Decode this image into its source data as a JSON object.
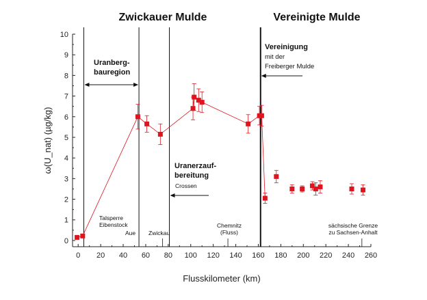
{
  "chart_data": {
    "type": "scatter",
    "title": "",
    "xlabel": "Flusskilometer  (km)",
    "ylabel": "ω(U_nat)  (µg/kg)",
    "xlim": [
      -5,
      260
    ],
    "ylim": [
      -0.3,
      10
    ],
    "xticks": [
      0,
      20,
      40,
      60,
      80,
      100,
      120,
      140,
      160,
      180,
      200,
      220,
      240,
      260
    ],
    "yticks": [
      0,
      1,
      2,
      3,
      4,
      5,
      6,
      7,
      8,
      9,
      10
    ],
    "grid": false,
    "marker_color": "#e0141e",
    "series": [
      {
        "connected": true,
        "points": [
          {
            "x": -1,
            "y": 0.15,
            "err": 0
          },
          {
            "x": 4,
            "y": 0.22,
            "err": 0
          },
          {
            "x": 53,
            "y": 6.0,
            "err": 0.6
          },
          {
            "x": 61,
            "y": 5.65,
            "err": 0.4
          },
          {
            "x": 73,
            "y": 5.15,
            "err": 0.5
          },
          {
            "x": 102,
            "y": 6.4,
            "err": 0.55
          },
          {
            "x": 103,
            "y": 6.95,
            "err": 0.65
          },
          {
            "x": 107,
            "y": 6.8,
            "err": 0.55
          },
          {
            "x": 110,
            "y": 6.7,
            "err": 0.5
          },
          {
            "x": 151,
            "y": 5.65,
            "err": 0.45
          },
          {
            "x": 161,
            "y": 6.05,
            "err": 0.45
          },
          {
            "x": 163,
            "y": 6.05,
            "err": 0.5
          },
          {
            "x": 166,
            "y": 2.05,
            "err": 0.25
          }
        ]
      },
      {
        "connected": false,
        "points": [
          {
            "x": 176,
            "y": 3.1,
            "err": 0.3
          },
          {
            "x": 190,
            "y": 2.5,
            "err": 0.2
          },
          {
            "x": 199,
            "y": 2.5,
            "err": 0.15
          },
          {
            "x": 208,
            "y": 2.65,
            "err": 0.2
          },
          {
            "x": 211,
            "y": 2.5,
            "err": 0.3
          },
          {
            "x": 215,
            "y": 2.6,
            "err": 0.3
          },
          {
            "x": 243,
            "y": 2.5,
            "err": 0.25
          },
          {
            "x": 253,
            "y": 2.45,
            "err": 0.25
          }
        ]
      }
    ],
    "region_titles": [
      "Zwickauer Mulde",
      "Vereinigte Mulde"
    ],
    "annotations": {
      "uranbergbau_line1": "Uranberg-",
      "uranbergbau_line2": "bauregion",
      "uranerz_line1": "Uranerzauf-",
      "uranerz_line2": "bereitung",
      "crossen": "Crossen",
      "vereinigung_line1": "Vereinigung",
      "vereinigung_line2": "mit der",
      "vereinigung_line3": "Freiberger Mulde",
      "talsperre_line1": "Talsperre",
      "talsperre_line2": "Eibenstock",
      "aue": "Aue",
      "zwickau": "Zwickau",
      "chemnitz_line1": "Chemnitz",
      "chemnitz_line2": "(Fluss)",
      "grenze_line1": "sächsische Grenze",
      "grenze_line2": "zu Sachsen-Anhalt"
    },
    "vertical_lines_x": [
      5,
      54,
      81,
      162
    ]
  }
}
